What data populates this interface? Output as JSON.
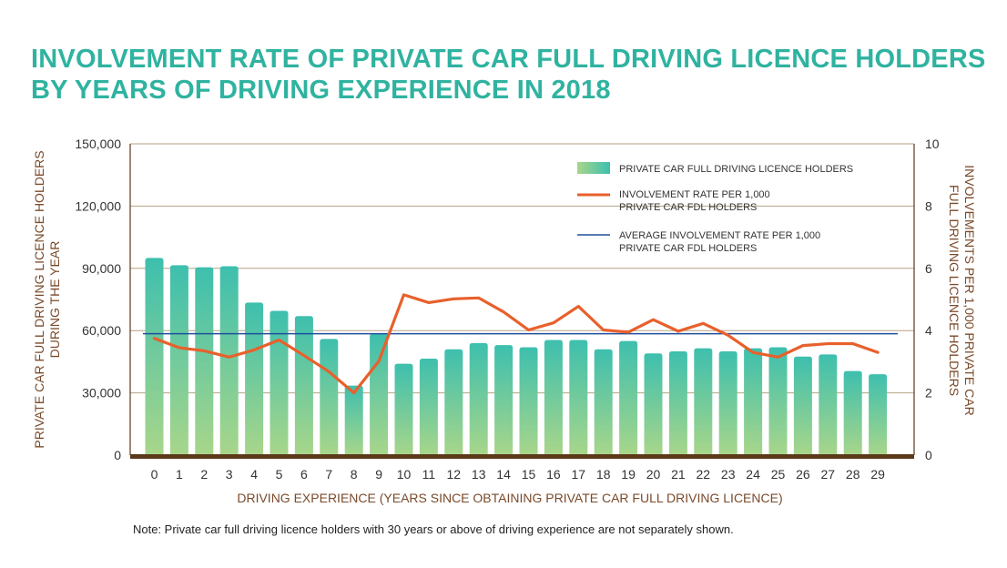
{
  "title_lines": [
    "INVOLVEMENT RATE OF PRIVATE CAR FULL DRIVING LICENCE HOLDERS",
    "BY YEARS OF DRIVING EXPERIENCE IN 2018"
  ],
  "note": "Note: Private car full driving licence holders with 30 years or above of driving experience are not separately shown.",
  "colors": {
    "title": "#2fb3a0",
    "bar_top": "#3dbfae",
    "bar_bottom": "#a8d68a",
    "rate_line": "#e8602c",
    "avg_line": "#1f4e9c",
    "axis": "#5a3a1a",
    "grid": "#b5a283"
  },
  "chart_data": {
    "type": "bar",
    "xlabel": "DRIVING EXPERIENCE (YEARS SINCE OBTAINING PRIVATE CAR FULL DRIVING LICENCE)",
    "ylabel_left": [
      "PRIVATE CAR FULL DRIVING LICENCE HOLDERS",
      "DURING THE YEAR"
    ],
    "ylabel_right": [
      "INVOLVEMENTS PER 1,000 PRIVATE CAR",
      "FULL DRIVING LICENCE HOLDERS"
    ],
    "categories": [
      "0",
      "1",
      "2",
      "3",
      "4",
      "5",
      "6",
      "7",
      "8",
      "9",
      "10",
      "11",
      "12",
      "13",
      "14",
      "15",
      "16",
      "17",
      "18",
      "19",
      "20",
      "21",
      "22",
      "23",
      "24",
      "25",
      "26",
      "27",
      "28",
      "29"
    ],
    "ylim_left": [
      0,
      150000
    ],
    "yticks_left": [
      0,
      30000,
      60000,
      90000,
      120000,
      150000
    ],
    "ytick_labels_left": [
      "0",
      "30,000",
      "60,000",
      "90,000",
      "120,000",
      "150,000"
    ],
    "ylim_right": [
      0,
      10
    ],
    "yticks_right": [
      0,
      2,
      4,
      6,
      8,
      10
    ],
    "ytick_labels_right": [
      "0",
      "2",
      "4",
      "6",
      "8",
      "10"
    ],
    "grid": true,
    "legend_position": "top-right",
    "series": [
      {
        "name": "PRIVATE CAR FULL DRIVING LICENCE HOLDERS",
        "type": "bar",
        "axis": "left",
        "values": [
          95000,
          91500,
          90500,
          91000,
          73500,
          69500,
          67000,
          56000,
          33500,
          58500,
          44000,
          46500,
          51000,
          54000,
          53000,
          52000,
          55500,
          55500,
          51000,
          55000,
          49000,
          50000,
          51500,
          50000,
          51500,
          52000,
          47500,
          48500,
          40500,
          39000
        ]
      },
      {
        "name": "INVOLVEMENT RATE PER 1,000 PRIVATE CAR FDL HOLDERS",
        "type": "line",
        "axis": "right",
        "values": [
          3.75,
          3.45,
          3.35,
          3.15,
          3.38,
          3.7,
          3.2,
          2.68,
          2.0,
          3.02,
          5.15,
          4.9,
          5.02,
          5.05,
          4.6,
          4.02,
          4.25,
          4.78,
          4.02,
          3.95,
          4.35,
          3.98,
          4.23,
          3.85,
          3.3,
          3.15,
          3.52,
          3.58,
          3.58,
          3.3
        ]
      },
      {
        "name": "AVERAGE INVOLVEMENT RATE PER 1,000 PRIVATE CAR FDL HOLDERS",
        "type": "hline",
        "axis": "right",
        "value": 3.9
      }
    ],
    "legend": [
      {
        "series": 0,
        "lines": [
          "PRIVATE CAR FULL DRIVING LICENCE HOLDERS"
        ]
      },
      {
        "series": 1,
        "lines": [
          "INVOLVEMENT RATE PER 1,000",
          "PRIVATE CAR FDL HOLDERS"
        ]
      },
      {
        "series": 2,
        "lines": [
          "AVERAGE INVOLVEMENT RATE PER 1,000",
          "PRIVATE CAR FDL HOLDERS"
        ]
      }
    ]
  }
}
